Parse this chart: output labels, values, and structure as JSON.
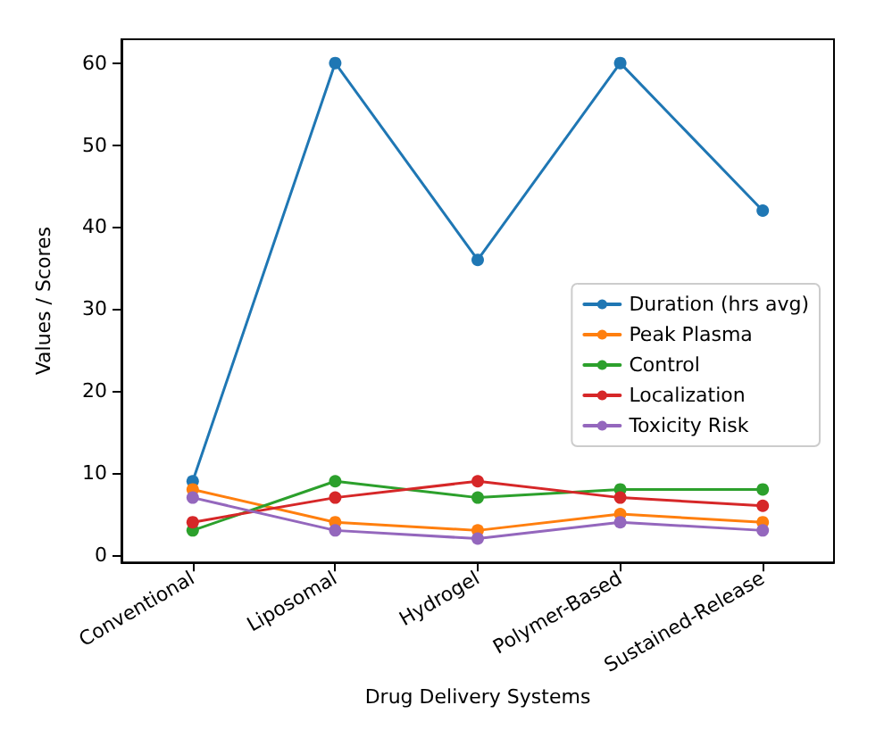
{
  "chart_data": {
    "type": "line",
    "xlabel": "Drug Delivery Systems",
    "ylabel": "Values / Scores",
    "categories": [
      "Conventional",
      "Liposomal",
      "Hydrogel",
      "Polymer-Based",
      "Sustained-Release"
    ],
    "series": [
      {
        "name": "Duration (hrs avg)",
        "color": "#1f77b4",
        "values": [
          9,
          60,
          36,
          60,
          42
        ]
      },
      {
        "name": "Peak Plasma",
        "color": "#ff7f0e",
        "values": [
          8,
          4,
          3,
          5,
          4
        ]
      },
      {
        "name": "Control",
        "color": "#2ca02c",
        "values": [
          3,
          9,
          7,
          8,
          8
        ]
      },
      {
        "name": "Localization",
        "color": "#d62728",
        "values": [
          4,
          7,
          9,
          7,
          6
        ]
      },
      {
        "name": "Toxicity Risk",
        "color": "#9467bd",
        "values": [
          7,
          3,
          2,
          4,
          3
        ]
      }
    ],
    "ylim": [
      -0.9,
      62.9
    ],
    "yticks": [
      0,
      10,
      20,
      30,
      40,
      50,
      60
    ],
    "grid": false,
    "legend": "right",
    "marker": "circle",
    "line_style": "solid"
  }
}
